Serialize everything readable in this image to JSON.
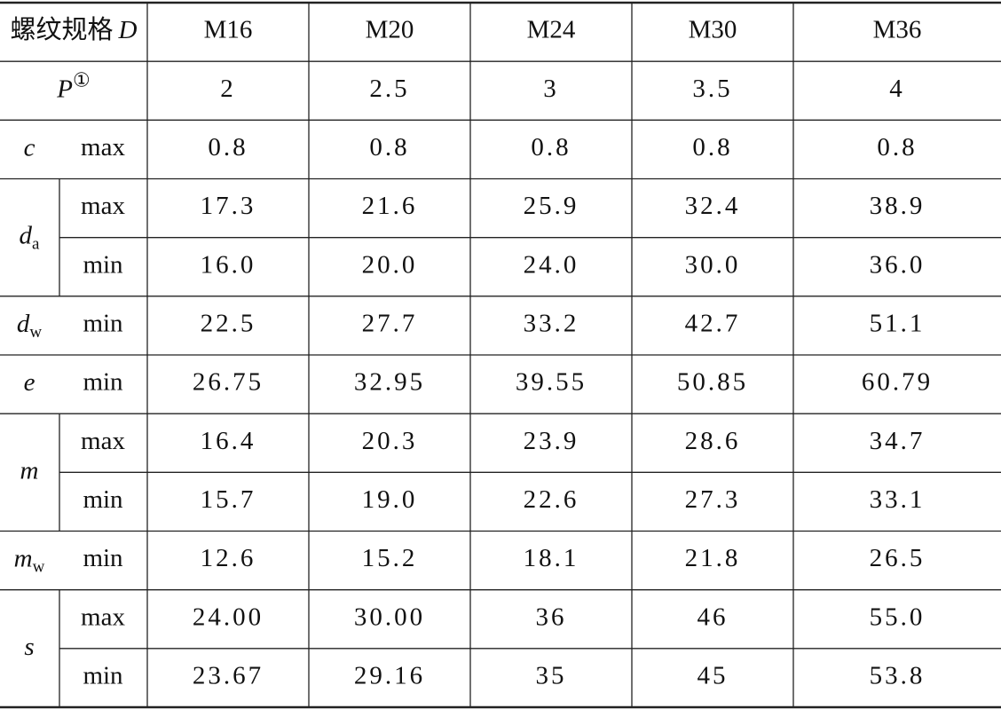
{
  "table": {
    "header": {
      "label": "螺纹规格",
      "symbol": "D",
      "columns": [
        "M16",
        "M20",
        "M24",
        "M30",
        "M36"
      ]
    },
    "pitch": {
      "symbol": "P",
      "mark": "①",
      "values": [
        "2",
        "2.5",
        "3",
        "3.5",
        "4"
      ]
    },
    "groups": [
      {
        "symbol": "c",
        "rows": [
          {
            "grade": "max",
            "values": [
              "0.8",
              "0.8",
              "0.8",
              "0.8",
              "0.8"
            ]
          }
        ]
      },
      {
        "symbol": "d",
        "subscript": "a",
        "rows": [
          {
            "grade": "max",
            "values": [
              "17.3",
              "21.6",
              "25.9",
              "32.4",
              "38.9"
            ]
          },
          {
            "grade": "min",
            "values": [
              "16.0",
              "20.0",
              "24.0",
              "30.0",
              "36.0"
            ]
          }
        ]
      },
      {
        "symbol": "d",
        "subscript": "w",
        "rows": [
          {
            "grade": "min",
            "values": [
              "22.5",
              "27.7",
              "33.2",
              "42.7",
              "51.1"
            ]
          }
        ]
      },
      {
        "symbol": "e",
        "rows": [
          {
            "grade": "min",
            "values": [
              "26.75",
              "32.95",
              "39.55",
              "50.85",
              "60.79"
            ]
          }
        ]
      },
      {
        "symbol": "m",
        "rows": [
          {
            "grade": "max",
            "values": [
              "16.4",
              "20.3",
              "23.9",
              "28.6",
              "34.7"
            ]
          },
          {
            "grade": "min",
            "values": [
              "15.7",
              "19.0",
              "22.6",
              "27.3",
              "33.1"
            ]
          }
        ]
      },
      {
        "symbol": "m",
        "subscript": "w",
        "rows": [
          {
            "grade": "min",
            "values": [
              "12.6",
              "15.2",
              "18.1",
              "21.8",
              "26.5"
            ]
          }
        ]
      },
      {
        "symbol": "s",
        "rows": [
          {
            "grade": "max",
            "values": [
              "24.00",
              "30.00",
              "36",
              "46",
              "55.0"
            ]
          },
          {
            "grade": "min",
            "values": [
              "23.67",
              "29.16",
              "35",
              "45",
              "53.8"
            ]
          }
        ]
      }
    ]
  }
}
